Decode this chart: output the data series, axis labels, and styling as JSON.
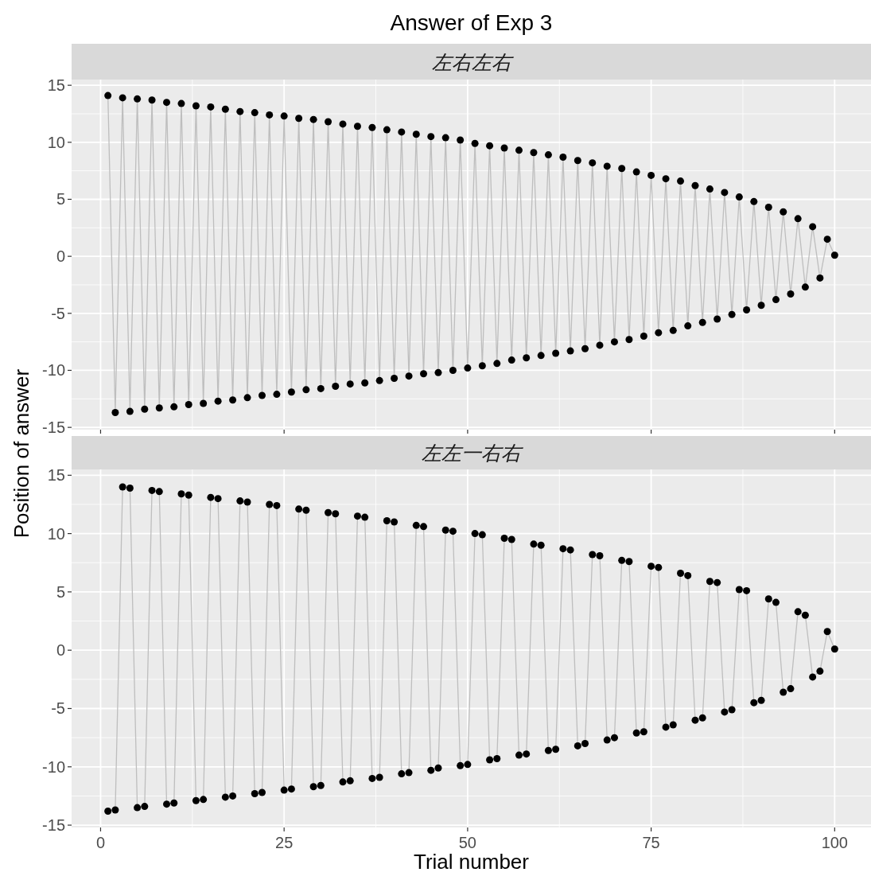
{
  "chart_data": [
    {
      "type": "line",
      "title": "Answer of Exp 3",
      "subtitle": "左右左右",
      "ylabel": "Position of answer",
      "grid": true,
      "tick_labels": "y",
      "xlim": [
        -3.95,
        104.95
      ],
      "xticks": [
        0,
        25,
        50,
        75,
        100
      ],
      "ylim": [
        -15.2,
        15.5
      ],
      "yticks": [
        -15,
        -10,
        -5,
        0,
        5,
        10,
        15
      ],
      "x": [
        1,
        2,
        3,
        4,
        5,
        6,
        7,
        8,
        9,
        10,
        11,
        12,
        13,
        14,
        15,
        16,
        17,
        18,
        19,
        20,
        21,
        22,
        23,
        24,
        25,
        26,
        27,
        28,
        29,
        30,
        31,
        32,
        33,
        34,
        35,
        36,
        37,
        38,
        39,
        40,
        41,
        42,
        43,
        44,
        45,
        46,
        47,
        48,
        49,
        50,
        51,
        52,
        53,
        54,
        55,
        56,
        57,
        58,
        59,
        60,
        61,
        62,
        63,
        64,
        65,
        66,
        67,
        68,
        69,
        70,
        71,
        72,
        73,
        74,
        75,
        76,
        77,
        78,
        79,
        80,
        81,
        82,
        83,
        84,
        85,
        86,
        87,
        88,
        89,
        90,
        91,
        92,
        93,
        94,
        95,
        96,
        97,
        98,
        99,
        100
      ],
      "series": [
        {
          "color": "#bebebe",
          "values": [
            14.1,
            -13.7,
            13.9,
            -13.6,
            13.8,
            -13.4,
            13.7,
            -13.3,
            13.5,
            -13.2,
            13.4,
            -13.0,
            13.2,
            -12.9,
            13.1,
            -12.7,
            12.9,
            -12.6,
            12.7,
            -12.4,
            12.6,
            -12.2,
            12.4,
            -12.1,
            12.3,
            -11.9,
            12.1,
            -11.7,
            12.0,
            -11.6,
            11.8,
            -11.4,
            11.6,
            -11.2,
            11.4,
            -11.1,
            11.3,
            -10.9,
            11.1,
            -10.7,
            10.9,
            -10.5,
            10.7,
            -10.3,
            10.5,
            -10.2,
            10.4,
            -10.0,
            10.2,
            -9.8,
            9.9,
            -9.6,
            9.7,
            -9.4,
            9.5,
            -9.1,
            9.3,
            -8.9,
            9.1,
            -8.7,
            8.9,
            -8.5,
            8.7,
            -8.3,
            8.4,
            -8.1,
            8.2,
            -7.8,
            7.9,
            -7.5,
            7.7,
            -7.3,
            7.4,
            -7.0,
            7.1,
            -6.7,
            6.8,
            -6.5,
            6.6,
            -6.1,
            6.2,
            -5.8,
            5.9,
            -5.5,
            5.6,
            -5.1,
            5.2,
            -4.7,
            4.8,
            -4.3,
            4.3,
            -3.8,
            3.9,
            -3.3,
            3.3,
            -2.7,
            2.6,
            -1.9,
            1.5,
            0.1
          ]
        },
        {
          "type": "scatter",
          "color": "#000000",
          "values": [
            14.1,
            -13.7,
            13.9,
            -13.6,
            13.8,
            -13.4,
            13.7,
            -13.3,
            13.5,
            -13.2,
            13.4,
            -13.0,
            13.2,
            -12.9,
            13.1,
            -12.7,
            12.9,
            -12.6,
            12.7,
            -12.4,
            12.6,
            -12.2,
            12.4,
            -12.1,
            12.3,
            -11.9,
            12.1,
            -11.7,
            12.0,
            -11.6,
            11.8,
            -11.4,
            11.6,
            -11.2,
            11.4,
            -11.1,
            11.3,
            -10.9,
            11.1,
            -10.7,
            10.9,
            -10.5,
            10.7,
            -10.3,
            10.5,
            -10.2,
            10.4,
            -10.0,
            10.2,
            -9.8,
            9.9,
            -9.6,
            9.7,
            -9.4,
            9.5,
            -9.1,
            9.3,
            -8.9,
            9.1,
            -8.7,
            8.9,
            -8.5,
            8.7,
            -8.3,
            8.4,
            -8.1,
            8.2,
            -7.8,
            7.9,
            -7.5,
            7.7,
            -7.3,
            7.4,
            -7.0,
            7.1,
            -6.7,
            6.8,
            -6.5,
            6.6,
            -6.1,
            6.2,
            -5.8,
            5.9,
            -5.5,
            5.6,
            -5.1,
            5.2,
            -4.7,
            4.8,
            -4.3,
            4.3,
            -3.8,
            3.9,
            -3.3,
            3.3,
            -2.7,
            2.6,
            -1.9,
            1.5,
            0.1
          ]
        }
      ]
    },
    {
      "type": "line",
      "title": "左左一右右",
      "xlabel": "Trial number",
      "grid": true,
      "xlim": [
        -3.95,
        104.95
      ],
      "xticks": [
        0,
        25,
        50,
        75,
        100
      ],
      "ylim": [
        -15.2,
        15.5
      ],
      "yticks": [
        -15,
        -10,
        -5,
        0,
        5,
        10,
        15
      ],
      "x": [
        1,
        2,
        3,
        4,
        5,
        6,
        7,
        8,
        9,
        10,
        11,
        12,
        13,
        14,
        15,
        16,
        17,
        18,
        19,
        20,
        21,
        22,
        23,
        24,
        25,
        26,
        27,
        28,
        29,
        30,
        31,
        32,
        33,
        34,
        35,
        36,
        37,
        38,
        39,
        40,
        41,
        42,
        43,
        44,
        45,
        46,
        47,
        48,
        49,
        50,
        51,
        52,
        53,
        54,
        55,
        56,
        57,
        58,
        59,
        60,
        61,
        62,
        63,
        64,
        65,
        66,
        67,
        68,
        69,
        70,
        71,
        72,
        73,
        74,
        75,
        76,
        77,
        78,
        79,
        80,
        81,
        82,
        83,
        84,
        85,
        86,
        87,
        88,
        89,
        90,
        91,
        92,
        93,
        94,
        95,
        96,
        97,
        98,
        99,
        100
      ],
      "series": [
        {
          "color": "#bebebe",
          "values": [
            -13.8,
            -13.7,
            14.0,
            13.9,
            -13.5,
            -13.4,
            13.7,
            13.6,
            -13.2,
            -13.1,
            13.4,
            13.3,
            -12.9,
            -12.8,
            13.1,
            13.0,
            -12.6,
            -12.5,
            12.8,
            12.7,
            -12.3,
            -12.2,
            12.5,
            12.4,
            -12.0,
            -11.9,
            12.1,
            12.0,
            -11.7,
            -11.6,
            11.8,
            11.7,
            -11.3,
            -11.2,
            11.5,
            11.4,
            -11.0,
            -10.9,
            11.1,
            11.0,
            -10.6,
            -10.5,
            10.7,
            10.6,
            -10.3,
            -10.1,
            10.3,
            10.2,
            -9.9,
            -9.8,
            10.0,
            9.9,
            -9.4,
            -9.3,
            9.6,
            9.5,
            -9.0,
            -8.9,
            9.1,
            9.0,
            -8.6,
            -8.5,
            8.7,
            8.6,
            -8.2,
            -8.0,
            8.2,
            8.1,
            -7.7,
            -7.5,
            7.7,
            7.6,
            -7.1,
            -7.0,
            7.2,
            7.1,
            -6.6,
            -6.4,
            6.6,
            6.4,
            -6.0,
            -5.8,
            5.9,
            5.8,
            -5.3,
            -5.1,
            5.2,
            5.1,
            -4.5,
            -4.3,
            4.4,
            4.1,
            -3.6,
            -3.3,
            3.3,
            3.0,
            -2.3,
            -1.8,
            1.6,
            0.1
          ]
        },
        {
          "type": "scatter",
          "color": "#000000",
          "values": [
            -13.8,
            -13.7,
            14.0,
            13.9,
            -13.5,
            -13.4,
            13.7,
            13.6,
            -13.2,
            -13.1,
            13.4,
            13.3,
            -12.9,
            -12.8,
            13.1,
            13.0,
            -12.6,
            -12.5,
            12.8,
            12.7,
            -12.3,
            -12.2,
            12.5,
            12.4,
            -12.0,
            -11.9,
            12.1,
            12.0,
            -11.7,
            -11.6,
            11.8,
            11.7,
            -11.3,
            -11.2,
            11.5,
            11.4,
            -11.0,
            -10.9,
            11.1,
            11.0,
            -10.6,
            -10.5,
            10.7,
            10.6,
            -10.3,
            -10.1,
            10.3,
            10.2,
            -9.9,
            -9.8,
            10.0,
            9.9,
            -9.4,
            -9.3,
            9.6,
            9.5,
            -9.0,
            -8.9,
            9.1,
            9.0,
            -8.6,
            -8.5,
            8.7,
            8.6,
            -8.2,
            -8.0,
            8.2,
            8.1,
            -7.7,
            -7.5,
            7.7,
            7.6,
            -7.1,
            -7.0,
            7.2,
            7.1,
            -6.6,
            -6.4,
            6.6,
            6.4,
            -6.0,
            -5.8,
            5.9,
            5.8,
            -5.3,
            -5.1,
            5.2,
            5.1,
            -4.5,
            -4.3,
            4.4,
            4.1,
            -3.6,
            -3.3,
            3.3,
            3.0,
            -2.3,
            -1.8,
            1.6,
            0.1
          ]
        }
      ]
    }
  ]
}
